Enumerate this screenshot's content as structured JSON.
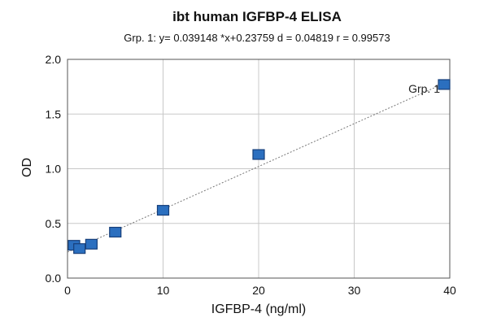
{
  "chart_data": {
    "type": "scatter",
    "title": "ibt human IGFBP-4 ELISA",
    "subtitle": "Grp. 1: y= 0.039148 *x+0.23759  d = 0.04819  r = 0.99573",
    "xlabel": "IGFBP-4  (ng/ml)",
    "ylabel": "OD",
    "xlim": [
      0,
      40
    ],
    "ylim": [
      0,
      2.0
    ],
    "x_ticks": [
      "0",
      "10",
      "20",
      "30",
      "40"
    ],
    "y_ticks": [
      "0.0",
      "0.5",
      "1.0",
      "1.5",
      "2.0"
    ],
    "grid": true,
    "series": [
      {
        "name": "Grp. 1",
        "x": [
          0,
          1.25,
          2.5,
          5,
          10,
          20,
          40
        ],
        "y": [
          0.3,
          0.27,
          0.31,
          0.42,
          0.62,
          1.13,
          1.77
        ],
        "fit": {
          "slope": 0.039148,
          "intercept": 0.23759
        }
      }
    ]
  }
}
